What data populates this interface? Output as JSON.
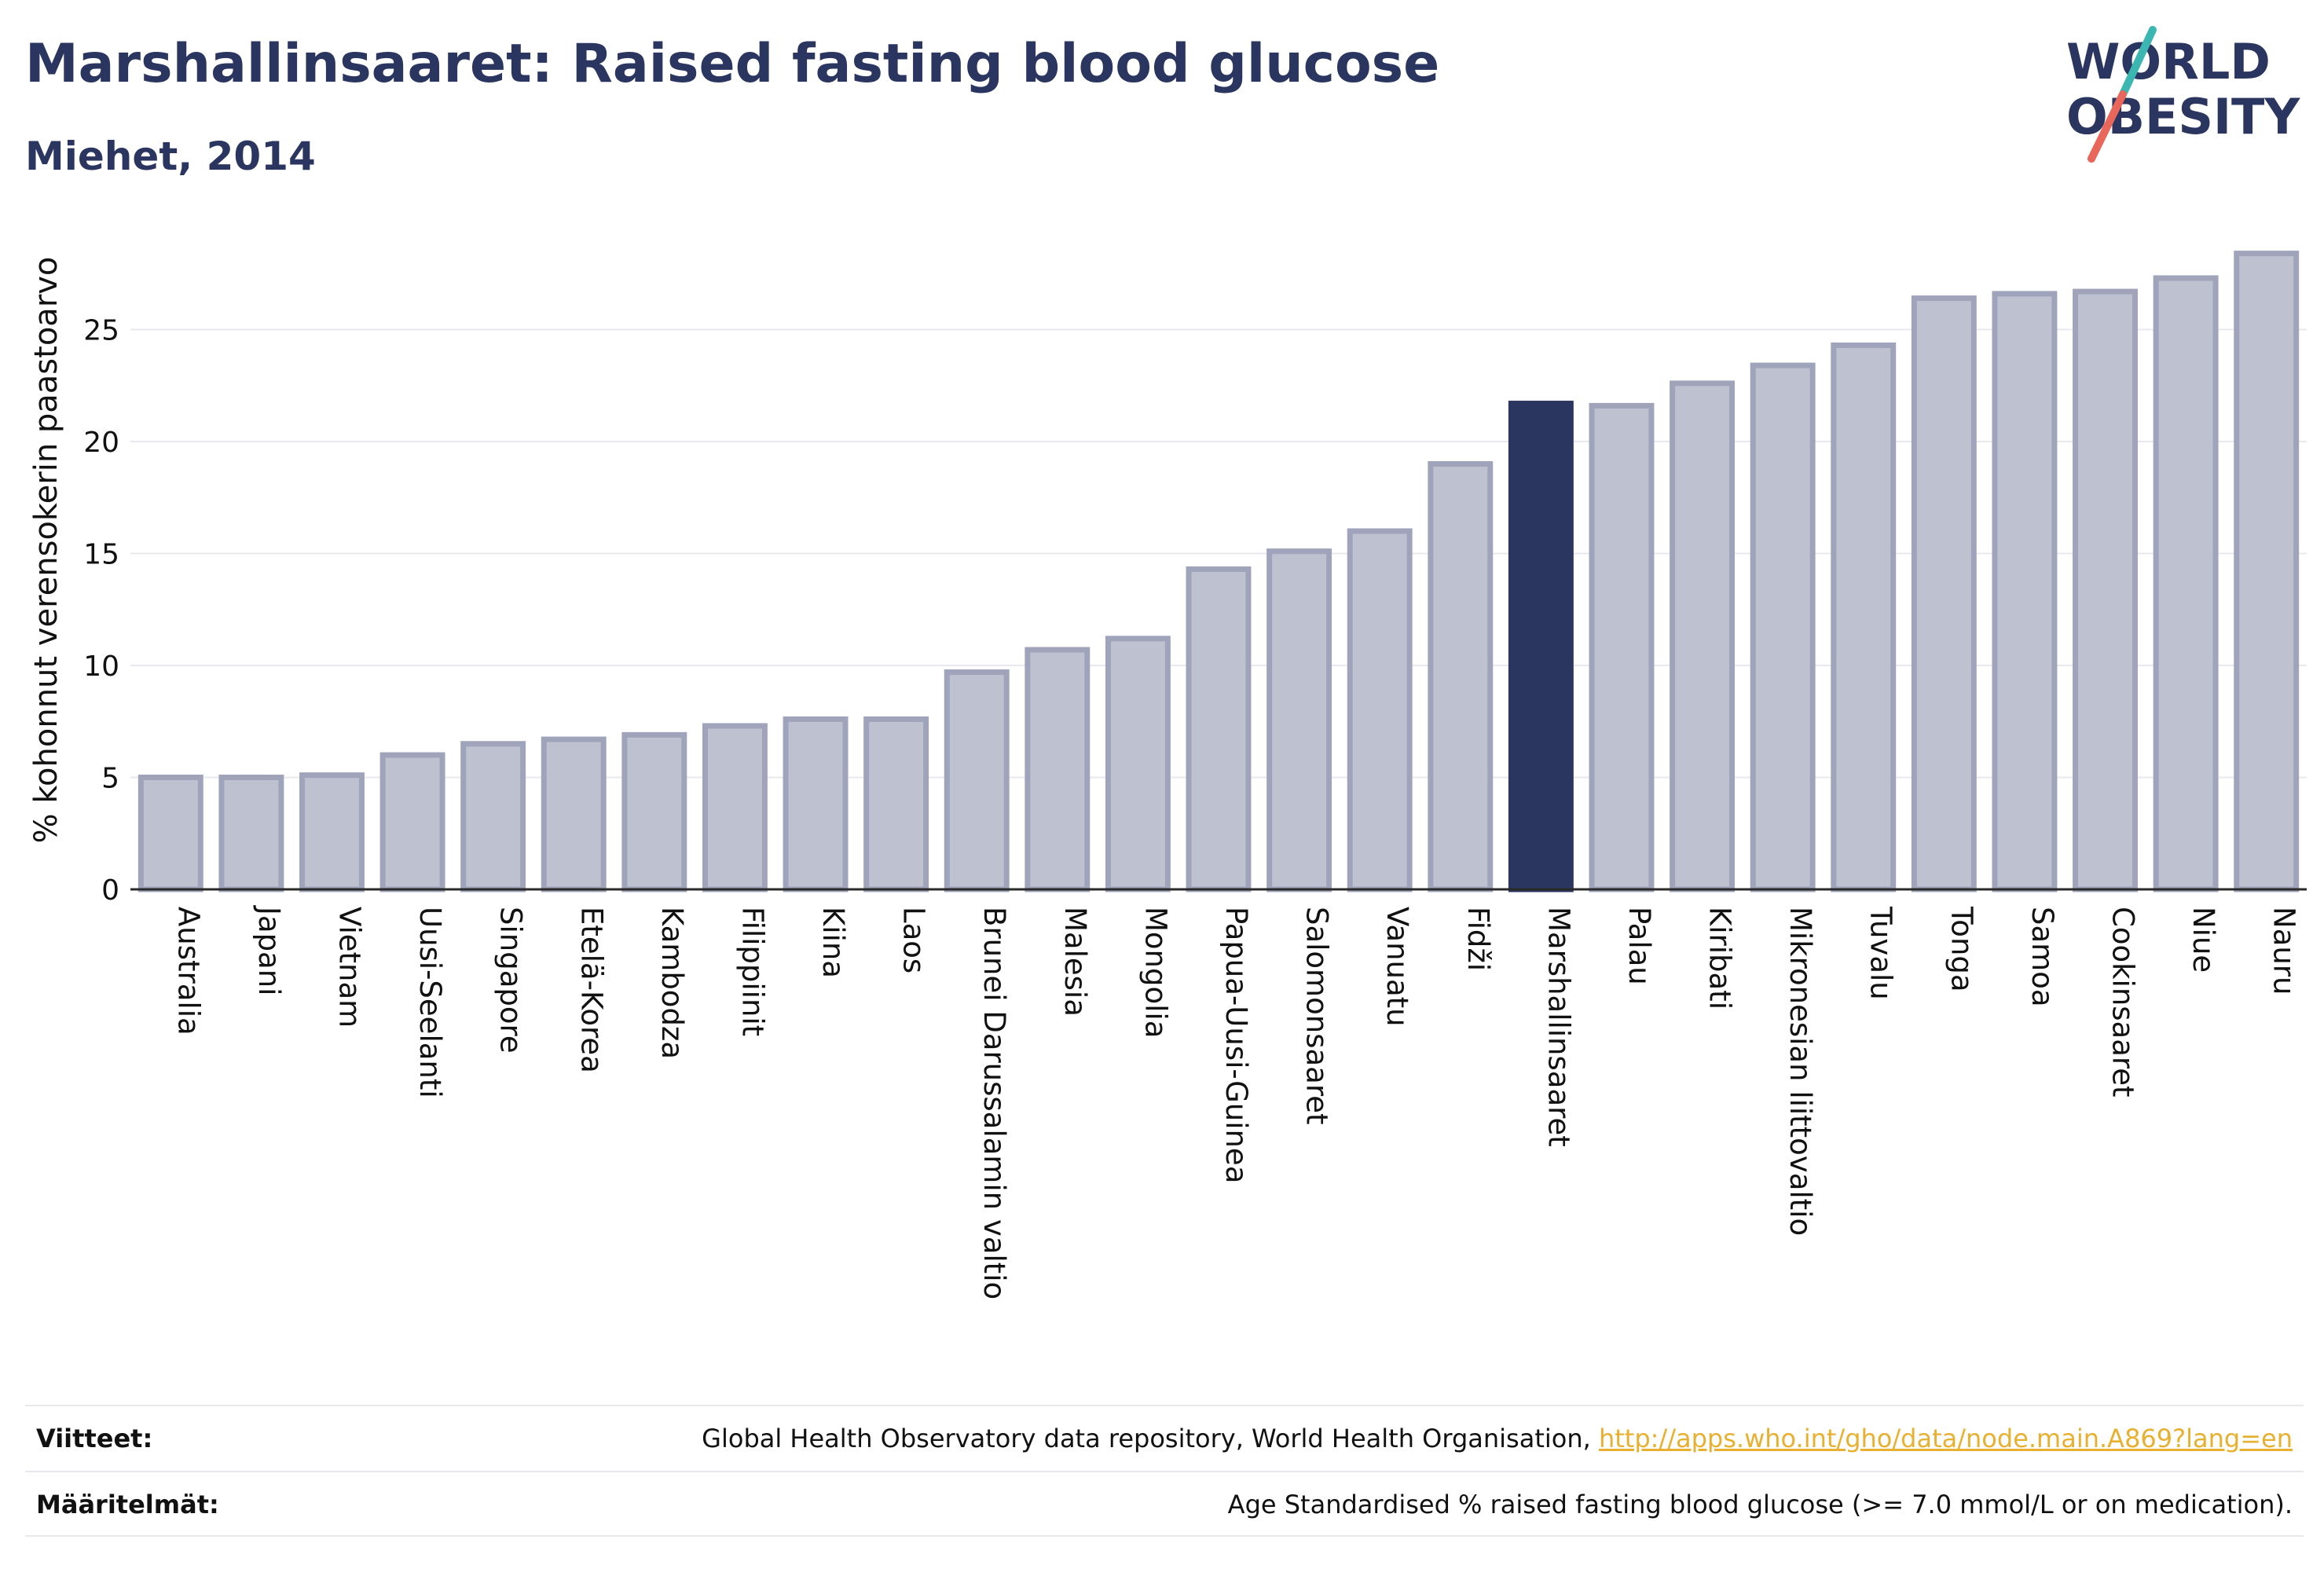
{
  "header": {
    "title": "Marshallinsaaret: Raised fasting blood glucose",
    "subtitle": "Miehet, 2014"
  },
  "logo": {
    "line1": "WORLD",
    "line2": "OBESITY",
    "icon": "world-obesity-logo"
  },
  "colors": {
    "highlight": "#2a3560",
    "bar_fill": "#bec1cf",
    "bar_stroke": "#9fa4bb",
    "text": "#2a3560",
    "link": "#e8b030",
    "gridline": "#e8e8ee"
  },
  "chart_data": {
    "type": "bar",
    "title": "Marshallinsaaret: Raised fasting blood glucose",
    "subtitle": "Miehet, 2014",
    "xlabel": "",
    "ylabel": "% kohonnut verensokerin paastoarvo",
    "ylim": [
      0,
      28.5
    ],
    "yticks": [
      0,
      5,
      10,
      15,
      20,
      25
    ],
    "grid": true,
    "highlight": "Marshallinsaaret",
    "categories": [
      "Australia",
      "Japani",
      "Vietnam",
      "Uusi-Seelanti",
      "Singapore",
      "Etelä-Korea",
      "Kambodza",
      "Filippiinit",
      "Kiina",
      "Laos",
      "Brunei Darussalamin valtio",
      "Malesia",
      "Mongolia",
      "Papua-Uusi-Guinea",
      "Salomonsaaret",
      "Vanuatu",
      "Fidži",
      "Marshallinsaaret",
      "Palau",
      "Kiribati",
      "Mikronesian liittovaltio",
      "Tuvalu",
      "Tonga",
      "Samoa",
      "Cookinsaaret",
      "Niue",
      "Nauru"
    ],
    "values": [
      5.0,
      5.0,
      5.1,
      6.0,
      6.5,
      6.7,
      6.9,
      7.3,
      7.6,
      7.6,
      9.7,
      10.7,
      11.2,
      14.3,
      15.1,
      16.0,
      19.0,
      21.7,
      21.6,
      22.6,
      23.4,
      24.3,
      26.4,
      26.6,
      26.7,
      27.3,
      28.4
    ]
  },
  "footer": {
    "refs_label": "Viitteet:",
    "refs_text": "Global Health Observatory data repository, World Health Organisation, ",
    "refs_link": "http://apps.who.int/gho/data/node.main.A869?lang=en",
    "defs_label": "Määritelmät:",
    "defs_text": "Age Standardised % raised fasting blood glucose (>= 7.0 mmol/L or on medication)."
  }
}
